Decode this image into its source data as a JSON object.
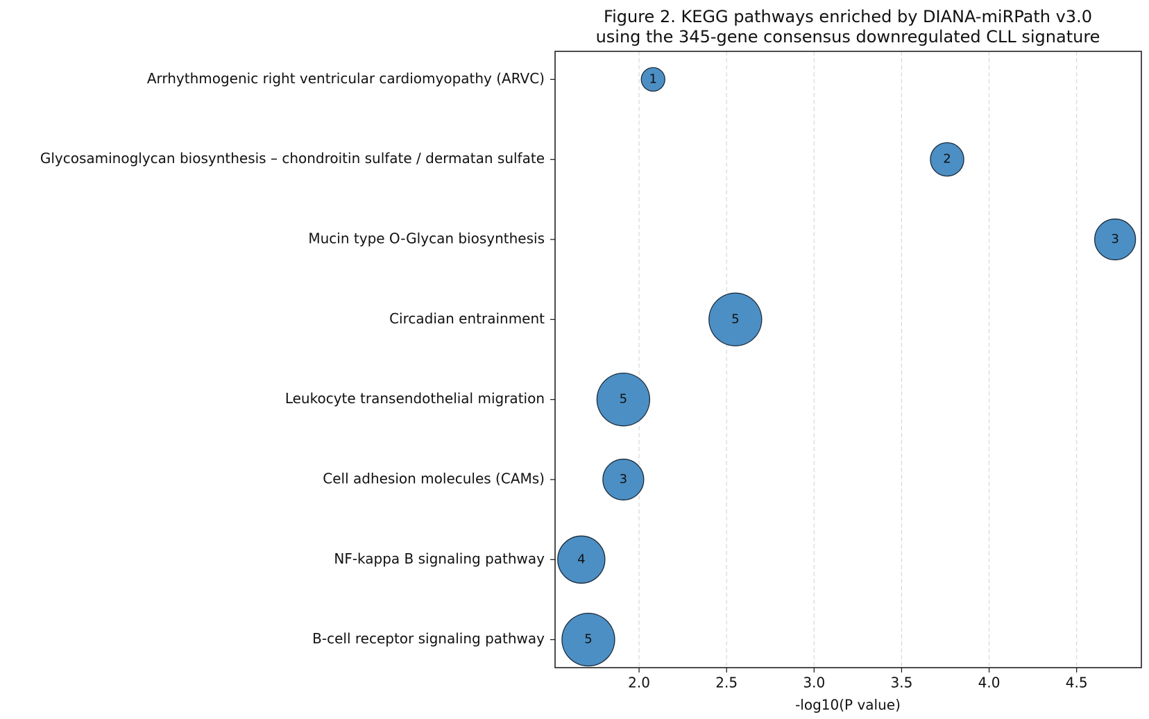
{
  "chart_data": {
    "type": "bubble",
    "title": [
      "Figure 2. KEGG pathways enriched by DIANA-miRPath v3.0",
      "using the 345-gene consensus downregulated CLL signature"
    ],
    "xlabel": "-log10(P value)",
    "categories": [
      "Arrhythmogenic right ventricular cardiomyopathy (ARVC)",
      "Glycosaminoglycan biosynthesis – chondroitin sulfate / dermatan sulfate",
      "Mucin type O-Glycan biosynthesis",
      "Circadian entrainment",
      "Leukocyte transendothelial migration",
      "Cell adhesion molecules (CAMs)",
      "NF-kappa B signaling pathway",
      "B-cell receptor signaling pathway"
    ],
    "values": [
      2.08,
      3.76,
      4.72,
      2.55,
      1.91,
      1.91,
      1.67,
      1.71
    ],
    "sizes": [
      1,
      2,
      3,
      5,
      5,
      3,
      4,
      5
    ],
    "color": "#4c8fc4",
    "xlim": [
      1.52,
      4.87
    ],
    "xticks": [
      {
        "value": 2,
        "label": "2.0"
      },
      {
        "value": 2.5,
        "label": "2.5"
      },
      {
        "value": 3,
        "label": "3.0"
      },
      {
        "value": 3.5,
        "label": "3.5"
      },
      {
        "value": 4,
        "label": "4.0"
      },
      {
        "value": 4.5,
        "label": "4.5"
      }
    ],
    "grid": true
  }
}
